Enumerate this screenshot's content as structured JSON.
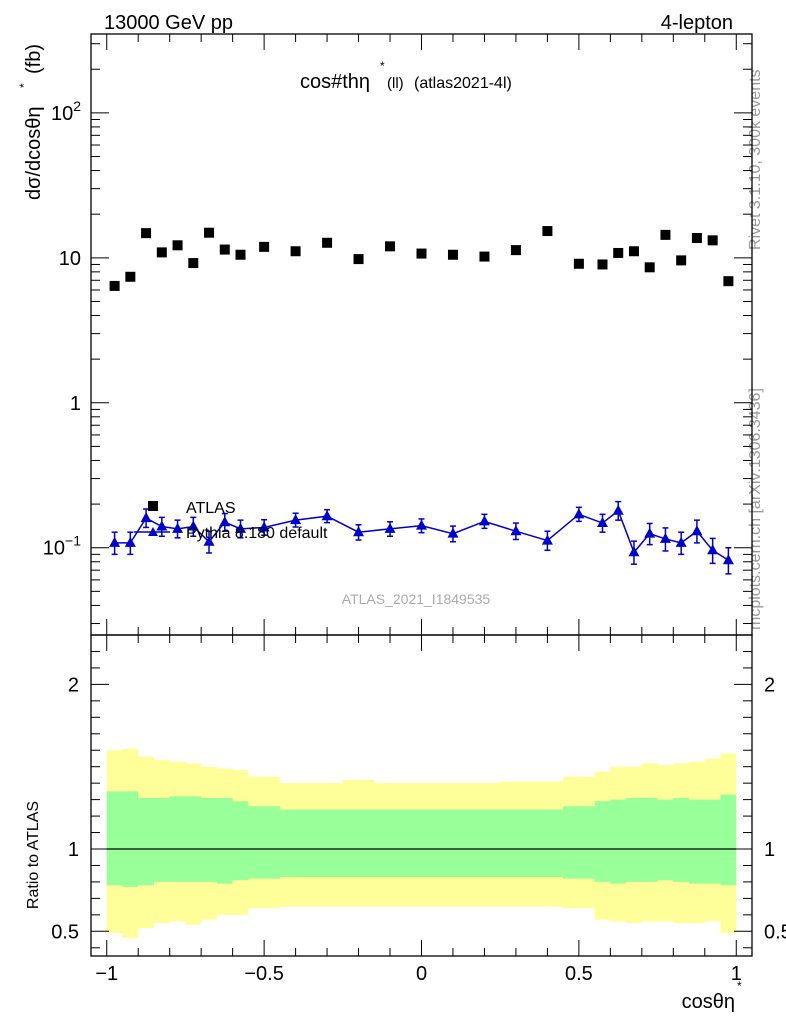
{
  "header": {
    "left": "13000 GeV pp",
    "right": "4-lepton"
  },
  "plot_title": {
    "main": "cos#thη",
    "sup": "*",
    "sub": "(ll)",
    "tag": "(atlas2021-4l)"
  },
  "side_text": {
    "rivet": "Rivet 3.1.10,  300k events",
    "mcplots": "mcplots.cern.ch [arXiv:1306.3436]"
  },
  "watermark": "ATLAS_2021_I1849535",
  "legend": {
    "data_label": "ATLAS",
    "mc_label": "Pythia 8.180 default"
  },
  "colors": {
    "data": "#000000",
    "mc": "#0000cc",
    "band_inner": "#99ff99",
    "band_outer": "#ffff99"
  },
  "chart_data": {
    "type": "scatter",
    "x_edges": [
      -1.0,
      -0.95,
      -0.9,
      -0.85,
      -0.8,
      -0.75,
      -0.7,
      -0.65,
      -0.6,
      -0.55,
      -0.45,
      -0.35,
      -0.25,
      -0.15,
      -0.05,
      0.05,
      0.15,
      0.25,
      0.35,
      0.45,
      0.55,
      0.6,
      0.65,
      0.7,
      0.75,
      0.8,
      0.85,
      0.9,
      0.95,
      1.0
    ],
    "main": {
      "ylabel_main": "dσ/dcosθη",
      "ylabel_sup": "*",
      "ylabel_unit": "(fb)",
      "yscale": "log",
      "ylim": [
        0.025,
        350
      ],
      "yticks": [
        {
          "v": 0.1,
          "base": "10",
          "exp": "−1"
        },
        {
          "v": 1,
          "base": "1",
          "exp": ""
        },
        {
          "v": 10,
          "base": "10",
          "exp": ""
        },
        {
          "v": 100,
          "base": "10",
          "exp": "2"
        }
      ],
      "series": [
        {
          "name": "ATLAS",
          "marker": "square",
          "x": [
            -0.975,
            -0.925,
            -0.875,
            -0.825,
            -0.775,
            -0.725,
            -0.675,
            -0.625,
            -0.575,
            -0.5,
            -0.4,
            -0.3,
            -0.2,
            -0.1,
            0.0,
            0.1,
            0.2,
            0.3,
            0.4,
            0.5,
            0.575,
            0.625,
            0.675,
            0.725,
            0.775,
            0.825,
            0.875,
            0.925,
            0.975
          ],
          "y": [
            6.4,
            7.4,
            14.8,
            10.9,
            12.2,
            9.2,
            14.9,
            11.4,
            10.5,
            11.9,
            11.1,
            12.7,
            9.8,
            12.0,
            10.7,
            10.5,
            10.2,
            11.3,
            15.3,
            9.1,
            9.0,
            10.8,
            11.1,
            8.6,
            14.4,
            9.6,
            13.7,
            13.2,
            6.9
          ]
        },
        {
          "name": "Pythia 8.180 default",
          "marker": "triangle",
          "x": [
            -0.975,
            -0.925,
            -0.875,
            -0.825,
            -0.775,
            -0.725,
            -0.675,
            -0.625,
            -0.575,
            -0.5,
            -0.4,
            -0.3,
            -0.2,
            -0.1,
            0.0,
            0.1,
            0.2,
            0.3,
            0.4,
            0.5,
            0.575,
            0.625,
            0.675,
            0.725,
            0.775,
            0.825,
            0.875,
            0.925,
            0.975
          ],
          "y": [
            0.108,
            0.108,
            0.16,
            0.14,
            0.135,
            0.14,
            0.11,
            0.15,
            0.135,
            0.138,
            0.155,
            0.165,
            0.128,
            0.135,
            0.142,
            0.125,
            0.152,
            0.13,
            0.112,
            0.17,
            0.148,
            0.18,
            0.093,
            0.125,
            0.115,
            0.108,
            0.13,
            0.096,
            0.082
          ],
          "err_up": [
            0.02,
            0.02,
            0.025,
            0.022,
            0.02,
            0.022,
            0.02,
            0.022,
            0.02,
            0.018,
            0.018,
            0.018,
            0.016,
            0.016,
            0.016,
            0.016,
            0.018,
            0.018,
            0.018,
            0.02,
            0.022,
            0.028,
            0.018,
            0.022,
            0.022,
            0.02,
            0.025,
            0.02,
            0.018
          ],
          "err_dn": [
            0.018,
            0.018,
            0.022,
            0.02,
            0.018,
            0.02,
            0.018,
            0.02,
            0.018,
            0.016,
            0.016,
            0.016,
            0.015,
            0.015,
            0.015,
            0.015,
            0.016,
            0.016,
            0.016,
            0.018,
            0.02,
            0.025,
            0.016,
            0.02,
            0.02,
            0.018,
            0.022,
            0.018,
            0.016
          ]
        }
      ]
    },
    "ratio": {
      "ylabel": "Ratio to ATLAS",
      "ylim": [
        0.35,
        2.3
      ],
      "yticks": [
        0.5,
        1,
        2
      ],
      "ytick_labels": [
        "0.5",
        "1",
        "2"
      ],
      "inner_up": [
        1.35,
        1.35,
        1.31,
        1.31,
        1.32,
        1.32,
        1.31,
        1.31,
        1.29,
        1.26,
        1.24,
        1.24,
        1.24,
        1.24,
        1.24,
        1.24,
        1.24,
        1.24,
        1.24,
        1.26,
        1.29,
        1.3,
        1.31,
        1.31,
        1.3,
        1.31,
        1.3,
        1.3,
        1.33
      ],
      "inner_dn": [
        0.78,
        0.77,
        0.78,
        0.8,
        0.8,
        0.8,
        0.8,
        0.79,
        0.81,
        0.82,
        0.83,
        0.83,
        0.83,
        0.83,
        0.83,
        0.83,
        0.83,
        0.83,
        0.83,
        0.82,
        0.8,
        0.79,
        0.8,
        0.8,
        0.81,
        0.8,
        0.79,
        0.79,
        0.78
      ],
      "outer_up": [
        1.6,
        1.61,
        1.56,
        1.54,
        1.53,
        1.52,
        1.5,
        1.49,
        1.48,
        1.44,
        1.4,
        1.4,
        1.42,
        1.4,
        1.4,
        1.4,
        1.4,
        1.41,
        1.41,
        1.44,
        1.47,
        1.5,
        1.5,
        1.52,
        1.51,
        1.52,
        1.53,
        1.55,
        1.58
      ],
      "outer_dn": [
        0.49,
        0.46,
        0.52,
        0.55,
        0.56,
        0.54,
        0.57,
        0.6,
        0.6,
        0.64,
        0.65,
        0.65,
        0.65,
        0.65,
        0.65,
        0.65,
        0.65,
        0.65,
        0.65,
        0.64,
        0.57,
        0.56,
        0.55,
        0.56,
        0.56,
        0.55,
        0.55,
        0.56,
        0.49
      ]
    },
    "xlabel_main": "cosθη",
    "xlabel_sup": "*",
    "xlim": [
      -1.05,
      1.05
    ],
    "xticks": [
      -1,
      -0.5,
      0,
      0.5,
      1
    ],
    "xtick_labels": [
      "−1",
      "−0.5",
      "0",
      "0.5",
      "1"
    ]
  }
}
